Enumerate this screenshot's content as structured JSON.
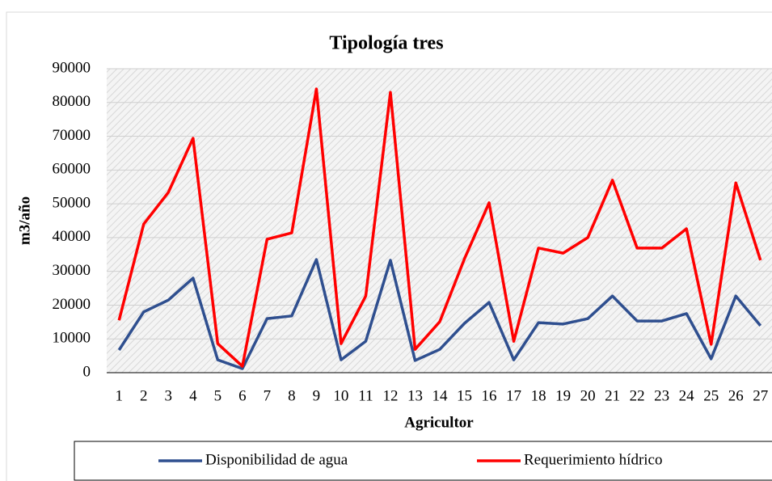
{
  "chart_data": {
    "type": "line",
    "title": "Tipología tres",
    "x_label": "Agricultor",
    "y_label": "m3/año",
    "categories": [
      "1",
      "2",
      "3",
      "4",
      "5",
      "6",
      "7",
      "8",
      "9",
      "10",
      "11",
      "12",
      "13",
      "14",
      "15",
      "16",
      "17",
      "18",
      "19",
      "20",
      "21",
      "22",
      "23",
      "24",
      "25",
      "26",
      "27"
    ],
    "series": [
      {
        "name": "Disponibilidad de agua",
        "color": "#2f4f8f",
        "values": [
          6700,
          18000,
          21500,
          28000,
          3800,
          1200,
          16000,
          16800,
          33500,
          3800,
          9300,
          33300,
          3600,
          6900,
          14600,
          20800,
          3800,
          14800,
          14400,
          16000,
          22700,
          15300,
          15300,
          17500,
          4100,
          22700,
          13900
        ]
      },
      {
        "name": "Requerimiento hídrico",
        "color": "#ff0000",
        "values": [
          15500,
          44000,
          53400,
          69400,
          8600,
          1900,
          39500,
          41400,
          84000,
          8600,
          22700,
          83000,
          6900,
          15100,
          33700,
          50300,
          9300,
          36900,
          35400,
          40000,
          57000,
          36900,
          36900,
          42600,
          8400,
          56200,
          33300
        ]
      }
    ],
    "ylim": [
      0,
      90000
    ],
    "yticks": [
      0,
      10000,
      20000,
      30000,
      40000,
      50000,
      60000,
      70000,
      80000,
      90000
    ],
    "grid": true,
    "legend": "bottom"
  }
}
